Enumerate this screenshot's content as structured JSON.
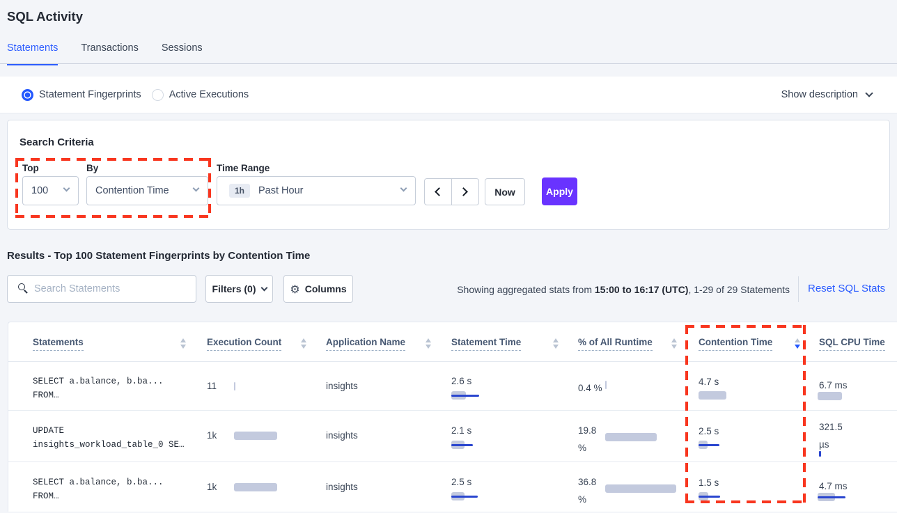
{
  "page_title": "SQL Activity",
  "tabs": {
    "statements": "Statements",
    "transactions": "Transactions",
    "sessions": "Sessions"
  },
  "view_toggle": {
    "statement_fingerprints": "Statement Fingerprints",
    "active_executions": "Active Executions",
    "show_description": "Show description"
  },
  "search_criteria": {
    "title": "Search Criteria",
    "top_label": "Top",
    "top_value": "100",
    "by_label": "By",
    "by_value": "Contention Time",
    "time_range_label": "Time Range",
    "time_range_badge": "1h",
    "time_range_value": "Past Hour",
    "now_label": "Now",
    "apply_label": "Apply"
  },
  "results": {
    "heading": "Results - Top 100 Statement Fingerprints by Contention Time",
    "search_placeholder": "Search Statements",
    "filters_label": "Filters (0)",
    "columns_label": "Columns",
    "showing_prefix": "Showing aggregated stats from ",
    "showing_range": "15:00 to 16:17 (UTC)",
    "showing_suffix": ", 1-29 of 29 Statements",
    "reset_label": "Reset SQL Stats"
  },
  "colors": {
    "accent_blue": "#2c5cff",
    "apply_purple": "#6933ff",
    "annotation_red": "#f8361f",
    "bar_gray": "#c3cade",
    "bar_blue": "#2a46cf"
  },
  "annotations": {
    "box1": "top-by-controls",
    "box2": "contention-time-column"
  },
  "table": {
    "headers": {
      "statements": "Statements",
      "execution_count": "Execution Count",
      "application_name": "Application Name",
      "statement_time": "Statement Time",
      "pct_runtime": "% of All Runtime",
      "contention_time": "Contention Time",
      "sql_cpu_time": "SQL CPU Time"
    },
    "sorted_by": "Contention Time",
    "sort_direction": "desc",
    "rows": [
      {
        "statement_line1": "SELECT a.balance, b.ba...",
        "statement_line2": "FROM…",
        "execution_count": "11",
        "execution_bar": 2,
        "application_name": "insights",
        "statement_time": "2.6 s",
        "statement_time_pill": 21,
        "statement_time_line": 40,
        "pct_runtime": "0.4 %",
        "pct_runtime_pill": 2,
        "contention_time": "4.7 s",
        "contention_pill": 40,
        "contention_line": 0,
        "sql_cpu_time": "6.7 ms",
        "cpu_pill": 35,
        "cpu_line": 0
      },
      {
        "statement_line1": "UPDATE",
        "statement_line2": "insights_workload_table_0 SE…",
        "execution_count": "1k",
        "execution_bar": 62,
        "application_name": "insights",
        "statement_time": "2.1 s",
        "statement_time_pill": 19,
        "statement_time_line": 31,
        "pct_runtime": "19.8 %",
        "pct_runtime_pill": 74,
        "contention_time": "2.5 s",
        "contention_pill": 13,
        "contention_line": 30,
        "sql_cpu_time": "321.5 µs",
        "cpu_tick": 3
      },
      {
        "statement_line1": "SELECT a.balance, b.ba...",
        "statement_line2": "FROM…",
        "execution_count": "1k",
        "execution_bar": 62,
        "application_name": "insights",
        "statement_time": "2.5 s",
        "statement_time_pill": 19,
        "statement_time_line": 38,
        "pct_runtime": "36.8 %",
        "pct_runtime_pill": 102,
        "contention_time": "1.5 s",
        "contention_pill": 14,
        "contention_line": 31,
        "sql_cpu_time": "4.7 ms",
        "cpu_pill": 25,
        "cpu_line": 40
      }
    ]
  }
}
